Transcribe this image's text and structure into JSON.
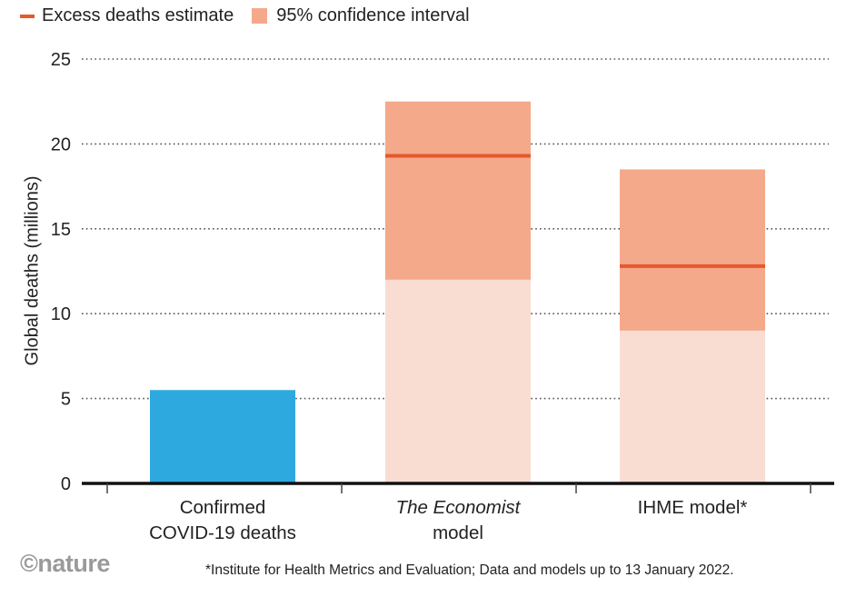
{
  "legend": {
    "estimate_label": "Excess deaths estimate",
    "ci_label": "95% confidence interval"
  },
  "footer": {
    "logo": "©nature",
    "footnote": "*Institute for Health Metrics and Evaluation; Data and models up to 13 January 2022."
  },
  "colors": {
    "confirmed": "#2ea9e0",
    "ci": "#f4a98b",
    "below_ci": "#f9ddd3",
    "estimate": "#e8582a"
  },
  "chart_data": {
    "type": "bar",
    "title": "",
    "ylabel": "Global deaths (millions)",
    "xlabel": "",
    "ylim": [
      0,
      25
    ],
    "yticks": [
      0,
      5,
      10,
      15,
      20,
      25
    ],
    "grid": "dotted horizontal",
    "legend_position": "top-left",
    "categories": [
      {
        "line1": "Confirmed",
        "line2": "COVID-19 deaths",
        "italic_line1": false
      },
      {
        "line1": "The Economist",
        "line2": "model",
        "italic_line1": true
      },
      {
        "line1": "IHME model*",
        "line2": "",
        "italic_line1": false
      }
    ],
    "confirmed_deaths": 5.5,
    "excess_estimate": [
      null,
      19.3,
      12.8
    ],
    "ci_low": [
      null,
      12.0,
      9.0
    ],
    "ci_high": [
      null,
      22.5,
      18.5
    ]
  }
}
